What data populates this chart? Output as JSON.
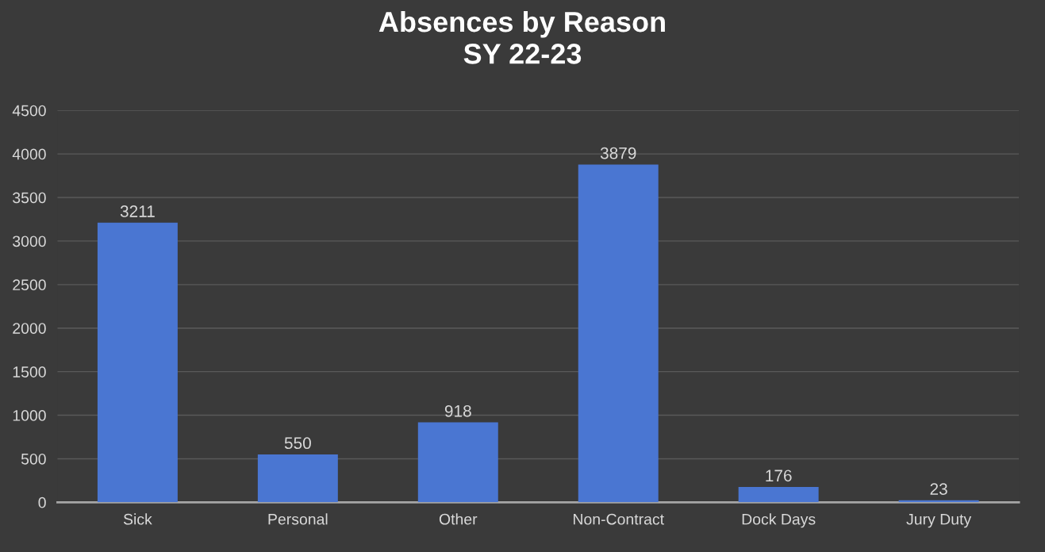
{
  "chart_data": {
    "type": "bar",
    "title": "Absences by Reason\nSY 22-23",
    "categories": [
      "Sick",
      "Personal",
      "Other",
      "Non-Contract",
      "Dock Days",
      "Jury Duty"
    ],
    "values": [
      3211,
      550,
      918,
      3879,
      176,
      23
    ],
    "color": "#4a76d2",
    "ylim": [
      0,
      4500
    ],
    "yticks": [
      0,
      500,
      1000,
      1500,
      2000,
      2500,
      3000,
      3500,
      4000,
      4500
    ],
    "grid": "y",
    "data_labels": true
  }
}
